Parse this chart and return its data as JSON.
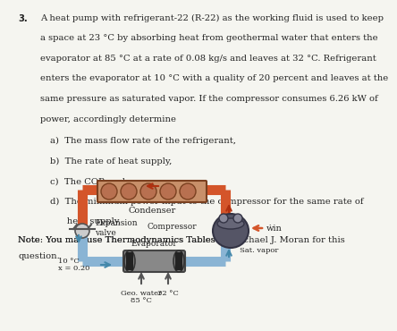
{
  "background_color": "#f5f5f0",
  "title_number": "3.",
  "problem_text": [
    "A heat pump with refrigerant-22 (R-22) as the working fluid is used to keep",
    "a space at 23 °C by absorbing heat from geothermal water that enters the",
    "evaporator at 85 °C at a rate of 0.08 kg/s and leaves at 32 °C. Refrigerant",
    "enters the evaporator at 10 °C with a quality of 20 percent and leaves at the",
    "same pressure as saturated vapor. If the compressor consumes 6.26 kW of",
    "power, accordingly determine"
  ],
  "items": [
    "a)  The mass flow rate of the refrigerant,",
    "b)  The rate of heat supply,",
    "c)  The COP, and",
    "d)  The minimum power input to the compressor for the same rate of",
    "      heat supply."
  ],
  "note_text": "Note: You may use Thermodynamics Tables by Michael J. Moran for this",
  "note_text2": "question.",
  "diagram_labels": {
    "condenser": "Condenser",
    "expansion_valve": "Expansion\nvalve",
    "compressor": "Compressor",
    "evaporator": "Evaporator",
    "sat_vapor": "Sat. vapor",
    "temp_10": "10 °C",
    "quality": "x = 0.20",
    "geo_water": "Geo. water",
    "temp_85": "85 °C",
    "temp_32": "32 °C",
    "w_in": "ẇin"
  },
  "pipe_color_hot": "#d4552a",
  "pipe_color_cold": "#8ab4d4",
  "pipe_color_cold2": "#a0c4e0",
  "text_color": "#222222",
  "diagram_bg": "#ffffff",
  "font_size_body": 7.2,
  "font_size_label": 6.5,
  "font_size_note": 7.2
}
